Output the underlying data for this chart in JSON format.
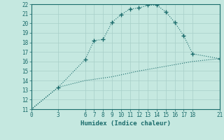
{
  "xlabel": "Humidex (Indice chaleur)",
  "bg_color": "#c5e8e0",
  "grid_color": "#a8cfc8",
  "line_color": "#1a6b6b",
  "xlim": [
    0,
    21
  ],
  "ylim": [
    11,
    22
  ],
  "xticks": [
    0,
    3,
    6,
    7,
    8,
    9,
    10,
    11,
    12,
    13,
    14,
    15,
    16,
    17,
    18,
    21
  ],
  "yticks": [
    11,
    12,
    13,
    14,
    15,
    16,
    17,
    18,
    19,
    20,
    21,
    22
  ],
  "curve1_x": [
    0,
    3,
    6,
    7,
    8,
    9,
    10,
    11,
    12,
    13,
    14,
    15,
    16,
    17,
    18,
    21
  ],
  "curve1_y": [
    11.0,
    13.3,
    16.2,
    18.2,
    18.3,
    20.1,
    20.9,
    21.5,
    21.6,
    21.9,
    21.9,
    21.2,
    20.1,
    18.7,
    16.8,
    16.3
  ],
  "curve2_x": [
    0,
    3,
    6,
    9,
    12,
    15,
    18,
    21
  ],
  "curve2_y": [
    11.0,
    13.3,
    14.0,
    14.4,
    15.0,
    15.5,
    16.0,
    16.3
  ],
  "tick_fontsize": 5.5,
  "xlabel_fontsize": 6.5
}
